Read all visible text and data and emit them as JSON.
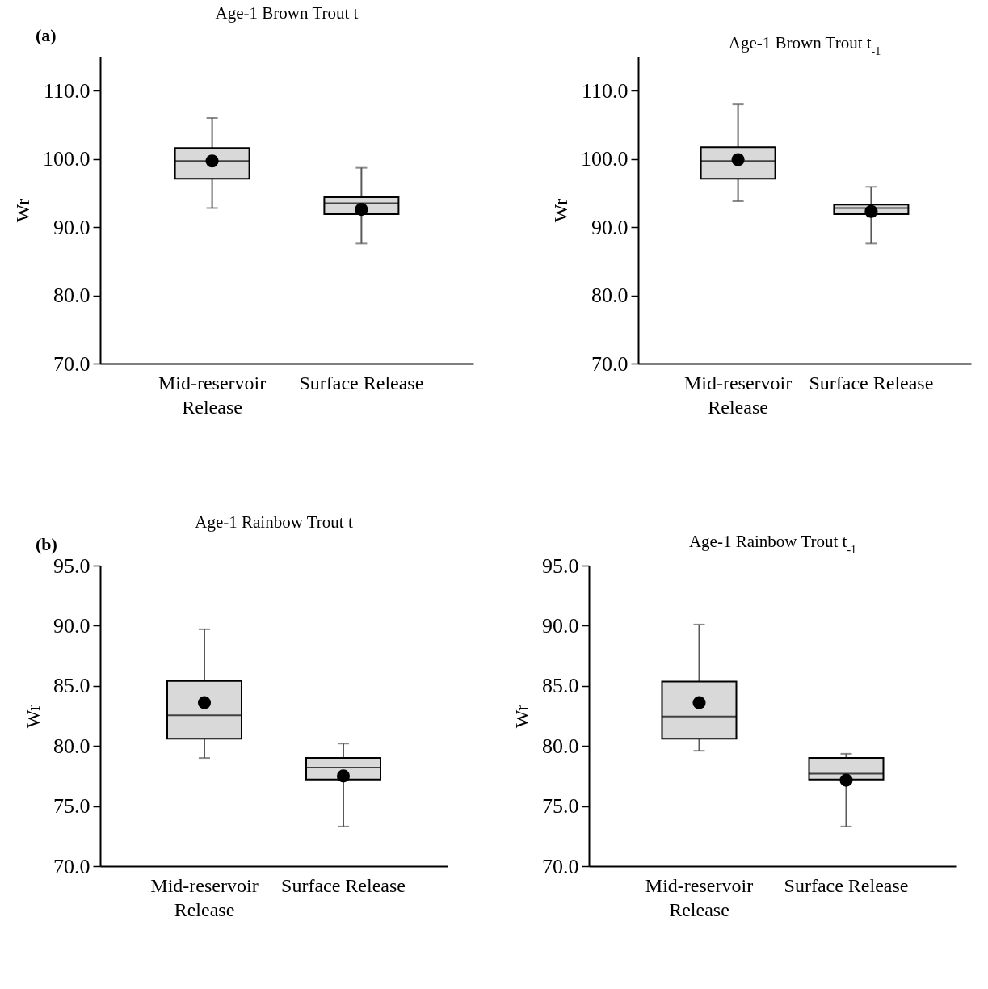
{
  "chart_data": [
    {
      "type": "box",
      "title": "Age-1 Brown Trout t",
      "ylabel": "Wr",
      "annotations": [
        "(a)"
      ],
      "categories": [
        "Mid-reservoir Release",
        "Surface Release"
      ],
      "color": "#d9d9d9",
      "marker": "circle",
      "boxes": [
        {
          "low": 92.8,
          "q1": 97.1,
          "median": 99.7,
          "q3": 101.6,
          "high": 106.0,
          "mean": 99.7
        },
        {
          "low": 87.6,
          "q1": 91.9,
          "median": 93.5,
          "q3": 94.4,
          "high": 98.7,
          "mean": 92.6
        }
      ],
      "ylim": [
        70,
        115
      ],
      "yticks": [
        {
          "value": 70,
          "label": "70.0"
        },
        {
          "value": 80,
          "label": "80.0"
        },
        {
          "value": 90,
          "label": "90.0"
        },
        {
          "value": 100,
          "label": "100.0"
        },
        {
          "value": 110,
          "label": "110.0"
        }
      ]
    },
    {
      "type": "box",
      "title": "Age-1 Brown Trout t$_{-1}$",
      "ylabel": "Wr",
      "categories": [
        "Mid-reservoir Release",
        "Surface Release"
      ],
      "color": "#d9d9d9",
      "marker": "circle",
      "boxes": [
        {
          "low": 93.8,
          "q1": 97.1,
          "median": 99.7,
          "q3": 101.7,
          "high": 108.0,
          "mean": 99.9
        },
        {
          "low": 87.6,
          "q1": 91.9,
          "median": 92.8,
          "q3": 93.3,
          "high": 95.9,
          "mean": 92.3
        }
      ],
      "ylim": [
        70,
        115
      ],
      "yticks": [
        {
          "value": 70,
          "label": "70.0"
        },
        {
          "value": 80,
          "label": "80.0"
        },
        {
          "value": 90,
          "label": "90.0"
        },
        {
          "value": 100,
          "label": "100.0"
        },
        {
          "value": 110,
          "label": "110.0"
        }
      ]
    },
    {
      "type": "box",
      "title": "Age-1 Rainbow Trout t",
      "ylabel": "Wr",
      "annotations": [
        "(b)"
      ],
      "categories": [
        "Mid-reservoir Release",
        "Surface Release"
      ],
      "color": "#d9d9d9",
      "marker": "circle",
      "boxes": [
        {
          "low": 79.0,
          "q1": 80.6,
          "median": 82.55,
          "q3": 85.4,
          "high": 89.7,
          "mean": 83.6
        },
        {
          "low": 73.3,
          "q1": 77.2,
          "median": 78.2,
          "q3": 79.0,
          "high": 80.2,
          "mean": 77.5
        }
      ],
      "ylim": [
        70,
        95
      ],
      "yticks": [
        {
          "value": 70,
          "label": "70.0"
        },
        {
          "value": 75,
          "label": "75.0"
        },
        {
          "value": 80,
          "label": "80.0"
        },
        {
          "value": 85,
          "label": "85.0"
        },
        {
          "value": 90,
          "label": "90.0"
        },
        {
          "value": 95,
          "label": "95.0"
        }
      ]
    },
    {
      "type": "box",
      "title": "Age-1 Rainbow Trout t$_{-1}$",
      "ylabel": "Wr",
      "categories": [
        "Mid-reservoir Release",
        "Surface Release"
      ],
      "color": "#d9d9d9",
      "marker": "circle",
      "boxes": [
        {
          "low": 79.6,
          "q1": 80.6,
          "median": 82.45,
          "q3": 85.35,
          "high": 90.1,
          "mean": 83.6
        },
        {
          "low": 73.3,
          "q1": 77.2,
          "median": 77.7,
          "q3": 79.0,
          "high": 79.35,
          "mean": 77.15
        }
      ],
      "ylim": [
        70,
        95
      ],
      "yticks": [
        {
          "value": 70,
          "label": "70.0"
        },
        {
          "value": 75,
          "label": "75.0"
        },
        {
          "value": 80,
          "label": "80.0"
        },
        {
          "value": 85,
          "label": "85.0"
        },
        {
          "value": 90,
          "label": "90.0"
        },
        {
          "value": 95,
          "label": "95.0"
        }
      ]
    }
  ]
}
